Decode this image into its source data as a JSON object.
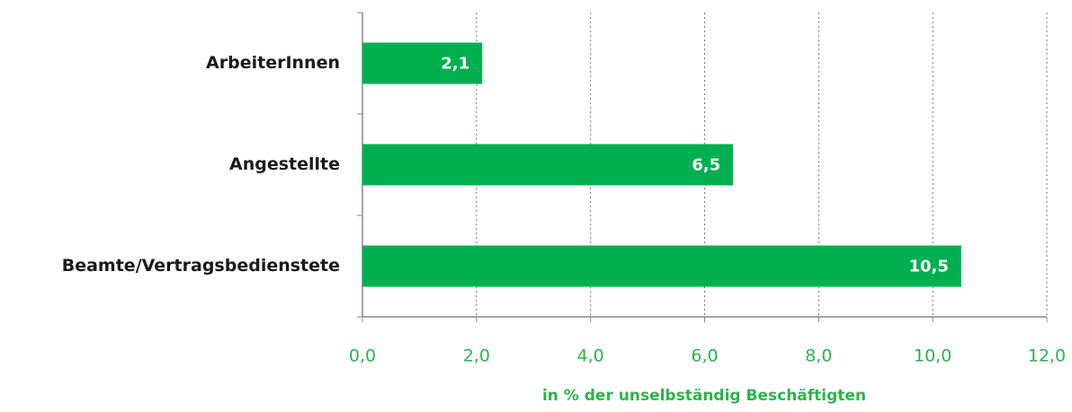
{
  "chart_data": {
    "type": "bar",
    "orientation": "horizontal",
    "categories": [
      "ArbeiterInnen",
      "Angestellte",
      "Beamte/Vertragsbedienstete"
    ],
    "values": [
      2.1,
      6.5,
      10.5
    ],
    "value_labels": [
      "2,1",
      "6,5",
      "10,5"
    ],
    "color": "#00b050",
    "x_label": "in % der unselbständig Beschäftigten",
    "xlim": [
      0,
      12
    ],
    "xticks": [
      {
        "value": 0,
        "label": "0,0"
      },
      {
        "value": 2,
        "label": "2,0"
      },
      {
        "value": 4,
        "label": "4,0"
      },
      {
        "value": 6,
        "label": "6,0"
      },
      {
        "value": 8,
        "label": "8,0"
      },
      {
        "value": 10,
        "label": "10,0"
      },
      {
        "value": 12,
        "label": "12,0"
      }
    ],
    "grid": true
  }
}
